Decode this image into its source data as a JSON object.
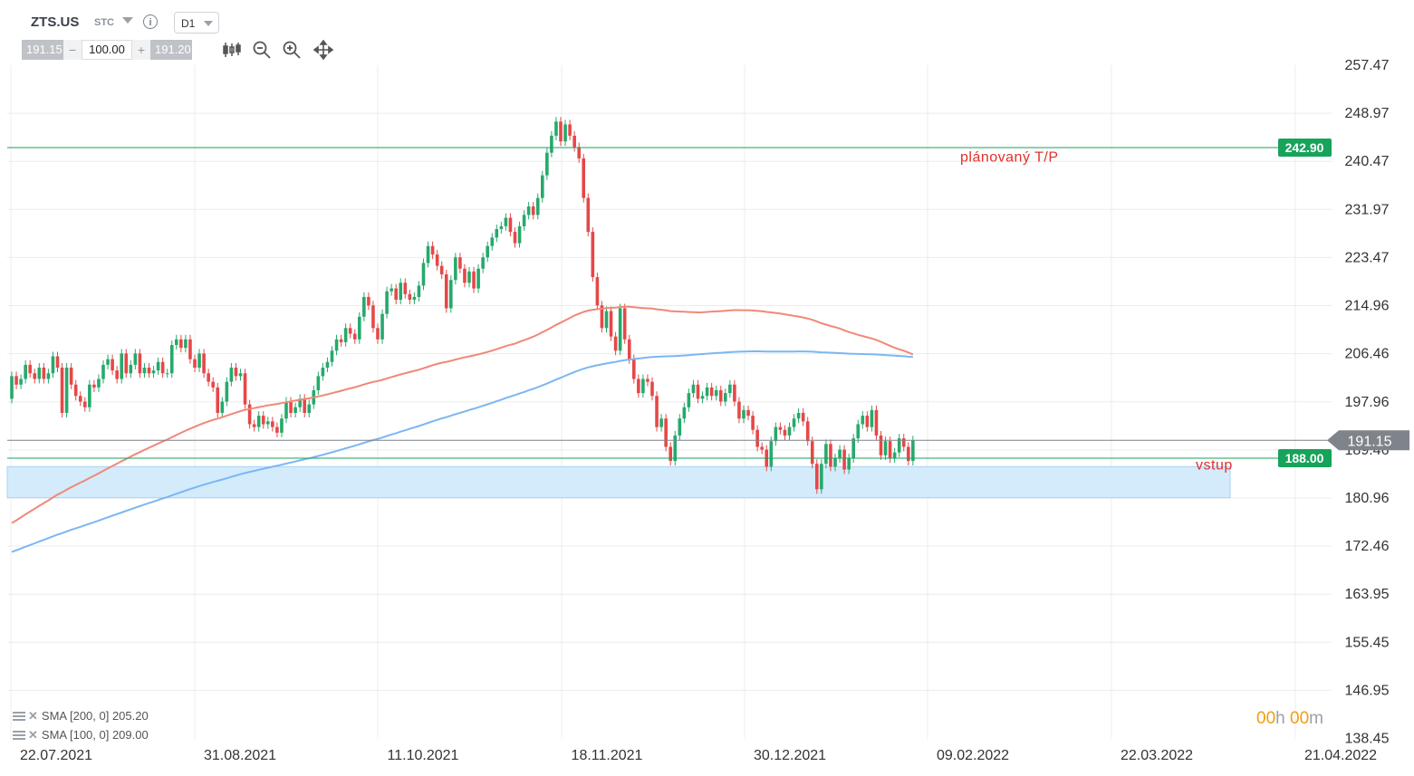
{
  "header": {
    "symbol": "ZTS.US",
    "market": "STC",
    "timeframe": "D1"
  },
  "order": {
    "sell_price": "191.15",
    "volume": "100.00",
    "buy_price": "191.20",
    "minus": "−",
    "plus": "+"
  },
  "tools": [
    "candlestick-icon",
    "zoom-out-icon",
    "zoom-in-icon",
    "move-icon"
  ],
  "colors": {
    "up": "#26a96c",
    "down": "#e54848",
    "sma200": "#f08878",
    "sma100": "#7cb6f4",
    "tp_line": "#17a35a",
    "zone": "#d4ebfb",
    "annotation": "#e0302c"
  },
  "indicators": [
    {
      "label": "SMA [200, 0] 205.20"
    },
    {
      "label": "SMA [100, 0] 209.00"
    }
  ],
  "timer": {
    "h": "00",
    "h_unit": "h",
    "m": "00",
    "m_unit": "m"
  },
  "chart_data": {
    "type": "candlestick",
    "price_axis": [
      "257.47",
      "248.97",
      "240.47",
      "231.97",
      "223.47",
      "214.96",
      "206.46",
      "197.96",
      "189.46",
      "180.96",
      "172.46",
      "163.95",
      "155.45",
      "146.95",
      "138.45"
    ],
    "ylim": [
      138.45,
      257.47
    ],
    "date_axis": [
      "22.07.2021",
      "31.08.2021",
      "11.10.2021",
      "18.11.2021",
      "30.12.2021",
      "09.02.2022",
      "22.03.2022",
      "21.04.2022"
    ],
    "levels": [
      {
        "name": "tp",
        "value": 242.9,
        "label": "242.90"
      },
      {
        "name": "current",
        "value": 191.15,
        "label": "191.15"
      },
      {
        "name": "entry",
        "value": 188.0,
        "label": "188.00"
      }
    ],
    "zone": [
      181.0,
      186.5
    ],
    "annotations": [
      {
        "text": "plánovaný T/P",
        "price": 240.3
      },
      {
        "text": "vstup",
        "price": 185.8
      }
    ],
    "candles": [
      [
        198.5,
        202.5
      ],
      [
        202.5,
        201.0
      ],
      [
        201.0,
        202.0
      ],
      [
        202.0,
        204.5
      ],
      [
        204.5,
        203.0
      ],
      [
        203.0,
        202.0
      ],
      [
        202.0,
        204.0
      ],
      [
        204.0,
        202.0
      ],
      [
        202.0,
        203.0
      ],
      [
        203.0,
        206.0
      ],
      [
        206.0,
        204.0
      ],
      [
        204.0,
        196.0
      ],
      [
        196.0,
        204.0
      ],
      [
        204.0,
        201.0
      ],
      [
        201.0,
        199.0
      ],
      [
        199.0,
        198.0
      ],
      [
        198.0,
        197.0
      ],
      [
        197.0,
        201.0
      ],
      [
        201.0,
        200.5
      ],
      [
        200.5,
        202.0
      ],
      [
        202.0,
        204.5
      ],
      [
        204.5,
        205.5
      ],
      [
        205.5,
        203.5
      ],
      [
        203.5,
        202.0
      ],
      [
        202.0,
        206.5
      ],
      [
        206.5,
        203.0
      ],
      [
        203.0,
        204.5
      ],
      [
        204.5,
        206.5
      ],
      [
        206.5,
        203.0
      ],
      [
        203.0,
        204.0
      ],
      [
        204.0,
        203.0
      ],
      [
        203.0,
        203.5
      ],
      [
        203.5,
        205.0
      ],
      [
        205.0,
        203.0
      ],
      [
        203.0,
        203.0
      ],
      [
        203.0,
        208.0
      ],
      [
        208.0,
        209.0
      ],
      [
        209.0,
        207.5
      ],
      [
        207.5,
        209.0
      ],
      [
        209.0,
        205.5
      ],
      [
        205.5,
        204.0
      ],
      [
        204.0,
        206.5
      ],
      [
        206.5,
        203.0
      ],
      [
        203.0,
        201.5
      ],
      [
        201.5,
        200.5
      ],
      [
        200.5,
        196.0
      ],
      [
        196.0,
        198.0
      ],
      [
        198.0,
        201.5
      ],
      [
        201.5,
        204.0
      ],
      [
        204.0,
        202.5
      ],
      [
        202.5,
        203.0
      ],
      [
        203.0,
        197.5
      ],
      [
        197.5,
        194.0
      ],
      [
        194.0,
        193.5
      ],
      [
        193.5,
        195.5
      ],
      [
        195.5,
        194.0
      ],
      [
        194.0,
        194.5
      ],
      [
        194.5,
        193.5
      ],
      [
        193.5,
        192.5
      ],
      [
        192.5,
        195.0
      ],
      [
        195.0,
        198.0
      ],
      [
        198.0,
        196.0
      ],
      [
        196.0,
        197.0
      ],
      [
        197.0,
        198.5
      ],
      [
        198.5,
        196.0
      ],
      [
        196.0,
        197.5
      ],
      [
        197.5,
        200.0
      ],
      [
        200.0,
        202.5
      ],
      [
        202.5,
        204.0
      ],
      [
        204.0,
        205.0
      ],
      [
        205.0,
        207.0
      ],
      [
        207.0,
        209.0
      ],
      [
        209.0,
        208.5
      ],
      [
        208.5,
        211.0
      ],
      [
        211.0,
        210.0
      ],
      [
        210.0,
        209.0
      ],
      [
        209.0,
        213.0
      ],
      [
        213.0,
        216.5
      ],
      [
        216.5,
        215.0
      ],
      [
        215.0,
        211.0
      ],
      [
        211.0,
        209.0
      ],
      [
        209.0,
        213.5
      ],
      [
        213.5,
        217.5
      ],
      [
        217.5,
        218.0
      ],
      [
        218.0,
        216.0
      ],
      [
        216.0,
        219.0
      ],
      [
        219.0,
        217.0
      ],
      [
        217.0,
        216.0
      ],
      [
        216.0,
        216.5
      ],
      [
        216.5,
        218.5
      ],
      [
        218.5,
        222.5
      ],
      [
        222.5,
        225.5
      ],
      [
        225.5,
        224.0
      ],
      [
        224.0,
        222.0
      ],
      [
        222.0,
        220.5
      ],
      [
        220.5,
        214.5
      ],
      [
        214.5,
        219.5
      ],
      [
        219.5,
        223.5
      ],
      [
        223.5,
        221.5
      ],
      [
        221.5,
        219.0
      ],
      [
        219.0,
        221.0
      ],
      [
        221.0,
        218.0
      ],
      [
        218.0,
        221.5
      ],
      [
        221.5,
        223.5
      ],
      [
        223.5,
        225.5
      ],
      [
        225.5,
        227.0
      ],
      [
        227.0,
        228.5
      ],
      [
        228.5,
        229.0
      ],
      [
        229.0,
        230.5
      ],
      [
        230.5,
        228.0
      ],
      [
        228.0,
        226.0
      ],
      [
        226.0,
        229.0
      ],
      [
        229.0,
        231.0
      ],
      [
        231.0,
        232.5
      ],
      [
        232.5,
        231.0
      ],
      [
        231.0,
        234.0
      ],
      [
        234.0,
        238.0
      ],
      [
        238.0,
        242.0
      ],
      [
        242.0,
        245.0
      ],
      [
        245.0,
        247.5
      ],
      [
        247.5,
        244.0
      ],
      [
        244.0,
        247.0
      ],
      [
        247.0,
        245.0
      ],
      [
        245.0,
        243.0
      ],
      [
        243.0,
        241.0
      ],
      [
        241.0,
        234.0
      ],
      [
        234.0,
        228.0
      ],
      [
        228.0,
        220.0
      ],
      [
        220.0,
        215.0
      ],
      [
        215.0,
        211.0
      ],
      [
        211.0,
        214.0
      ],
      [
        214.0,
        209.5
      ],
      [
        209.5,
        207.0
      ],
      [
        207.0,
        214.5
      ],
      [
        214.5,
        209.0
      ],
      [
        209.0,
        205.5
      ],
      [
        205.5,
        202.0
      ],
      [
        202.0,
        199.5
      ],
      [
        199.5,
        202.0
      ],
      [
        202.0,
        201.5
      ],
      [
        201.5,
        199.0
      ],
      [
        199.0,
        193.5
      ],
      [
        193.5,
        195.0
      ],
      [
        195.0,
        190.0
      ],
      [
        190.0,
        187.5
      ],
      [
        187.5,
        192.0
      ],
      [
        192.0,
        195.0
      ],
      [
        195.0,
        197.0
      ],
      [
        197.0,
        199.5
      ],
      [
        199.5,
        201.0
      ],
      [
        201.0,
        198.5
      ],
      [
        198.5,
        199.0
      ],
      [
        199.0,
        200.5
      ],
      [
        200.5,
        199.0
      ],
      [
        199.0,
        200.0
      ],
      [
        200.0,
        198.0
      ],
      [
        198.0,
        199.5
      ],
      [
        199.5,
        201.0
      ],
      [
        201.0,
        198.0
      ],
      [
        198.0,
        195.0
      ],
      [
        195.0,
        196.5
      ],
      [
        196.5,
        195.5
      ],
      [
        195.5,
        193.0
      ],
      [
        193.0,
        190.0
      ],
      [
        190.0,
        189.5
      ],
      [
        189.5,
        186.5
      ],
      [
        186.5,
        191.0
      ],
      [
        191.0,
        193.5
      ],
      [
        193.5,
        193.0
      ],
      [
        193.0,
        192.0
      ],
      [
        192.0,
        193.5
      ],
      [
        193.5,
        195.0
      ],
      [
        195.0,
        196.0
      ],
      [
        196.0,
        194.5
      ],
      [
        194.5,
        191.0
      ],
      [
        191.0,
        187.0
      ],
      [
        187.0,
        182.5
      ],
      [
        182.5,
        187.0
      ],
      [
        187.0,
        190.5
      ],
      [
        190.5,
        186.5
      ],
      [
        186.5,
        188.0
      ],
      [
        188.0,
        189.5
      ],
      [
        189.5,
        186.0
      ],
      [
        186.0,
        188.0
      ],
      [
        188.0,
        191.5
      ],
      [
        191.5,
        194.0
      ],
      [
        194.0,
        195.5
      ],
      [
        195.5,
        193.5
      ],
      [
        193.5,
        196.5
      ],
      [
        196.5,
        192.0
      ],
      [
        192.0,
        188.5
      ],
      [
        188.5,
        191.0
      ],
      [
        191.0,
        188.0
      ],
      [
        188.0,
        189.0
      ],
      [
        189.0,
        191.5
      ],
      [
        191.5,
        190.0
      ],
      [
        190.0,
        187.5
      ],
      [
        187.5,
        191.15
      ]
    ]
  }
}
